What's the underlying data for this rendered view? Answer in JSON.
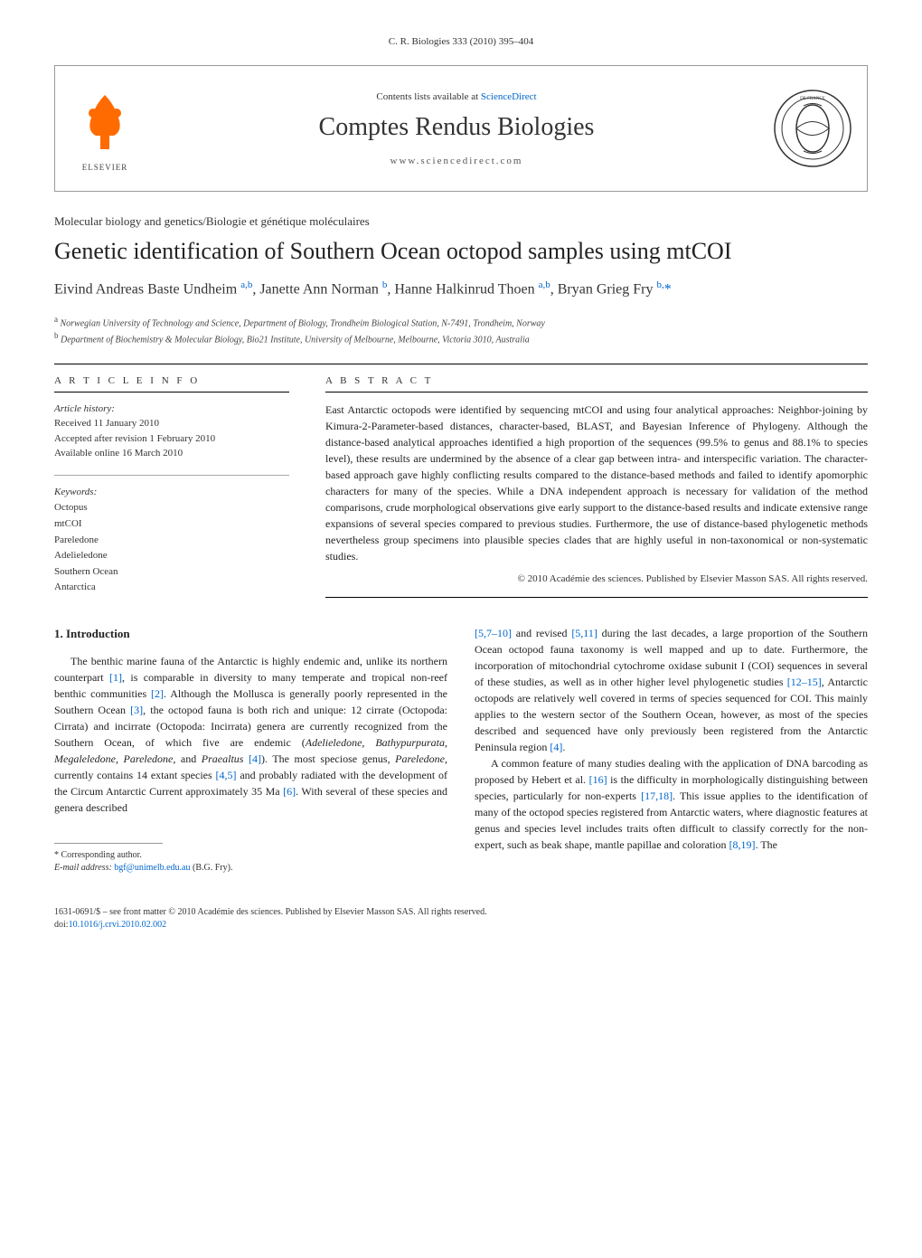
{
  "page_header": "C. R. Biologies 333 (2010) 395–404",
  "banner": {
    "elsevier_text": "ELSEVIER",
    "contents_prefix": "Contents lists available at ",
    "contents_link": "ScienceDirect",
    "journal_title": "Comptes Rendus Biologies",
    "journal_url": "www.sciencedirect.com"
  },
  "section_label": "Molecular biology and genetics/Biologie et génétique moléculaires",
  "article_title": "Genetic identification of Southern Ocean octopod samples using mtCOI",
  "authors_html": "Eivind Andreas Baste Undheim <sup>a,b</sup>, Janette Ann Norman <sup>b</sup>, Hanne Halkinrud Thoen <sup>a,b</sup>, Bryan Grieg Fry <sup>b,</sup><a href=\"#\">*</a>",
  "affiliations": [
    "a Norwegian University of Technology and Science, Department of Biology, Trondheim Biological Station, N-7491, Trondheim, Norway",
    "b Department of Biochemistry & Molecular Biology, Bio21 Institute, University of Melbourne, Melbourne, Victoria 3010, Australia"
  ],
  "info": {
    "heading": "A R T I C L E   I N F O",
    "history_label": "Article history:",
    "history": [
      "Received 11 January 2010",
      "Accepted after revision 1 February 2010",
      "Available online 16 March 2010"
    ],
    "keywords_label": "Keywords:",
    "keywords": [
      "Octopus",
      "mtCOI",
      "Pareledone",
      "Adelieledone",
      "Southern Ocean",
      "Antarctica"
    ]
  },
  "abstract": {
    "heading": "A B S T R A C T",
    "text": "East Antarctic octopods were identified by sequencing mtCOI and using four analytical approaches: Neighbor-joining by Kimura-2-Parameter-based distances, character-based, BLAST, and Bayesian Inference of Phylogeny. Although the distance-based analytical approaches identified a high proportion of the sequences (99.5% to genus and 88.1% to species level), these results are undermined by the absence of a clear gap between intra- and interspecific variation. The character-based approach gave highly conflicting results compared to the distance-based methods and failed to identify apomorphic characters for many of the species. While a DNA independent approach is necessary for validation of the method comparisons, crude morphological observations give early support to the distance-based results and indicate extensive range expansions of several species compared to previous studies. Furthermore, the use of distance-based phylogenetic methods nevertheless group specimens into plausible species clades that are highly useful in non-taxonomical or non-systematic studies.",
    "copyright": "© 2010 Académie des sciences. Published by Elsevier Masson SAS. All rights reserved."
  },
  "body": {
    "section_heading": "1. Introduction",
    "left_col_html": "The benthic marine fauna of the Antarctic is highly endemic and, unlike its northern counterpart <a class=\"ref\" href=\"#\">[1]</a>, is comparable in diversity to many temperate and tropical non-reef benthic communities <a class=\"ref\" href=\"#\">[2]</a>. Although the Mollusca is generally poorly represented in the Southern Ocean <a class=\"ref\" href=\"#\">[3]</a>, the octopod fauna is both rich and unique: 12 cirrate (Octopoda: Cirrata) and incirrate (Octopoda: Incirrata) genera are currently recognized from the Southern Ocean, of which five are endemic (<span class=\"ital\">Adelieledone, Bathypurpurata, Megaleledone, Pareledone</span>, and <span class=\"ital\">Praealtus</span> <a class=\"ref\" href=\"#\">[4]</a>). The most speciose genus, <span class=\"ital\">Pareledone</span>, currently contains 14 extant species <a class=\"ref\" href=\"#\">[4,5]</a> and probably radiated with the development of the Circum Antarctic Current approximately 35 Ma <a class=\"ref\" href=\"#\">[6]</a>. With several of these species and genera described",
    "right_col_p1_html": "<a class=\"ref\" href=\"#\">[5,7–10]</a> and revised <a class=\"ref\" href=\"#\">[5,11]</a> during the last decades, a large proportion of the Southern Ocean octopod fauna taxonomy is well mapped and up to date. Furthermore, the incorporation of mitochondrial cytochrome oxidase subunit I (COI) sequences in several of these studies, as well as in other higher level phylogenetic studies <a class=\"ref\" href=\"#\">[12–15]</a>, Antarctic octopods are relatively well covered in terms of species sequenced for COI. This mainly applies to the western sector of the Southern Ocean, however, as most of the species described and sequenced have only previously been registered from the Antarctic Peninsula region <a class=\"ref\" href=\"#\">[4]</a>.",
    "right_col_p2_html": "A common feature of many studies dealing with the application of DNA barcoding as proposed by Hebert et al. <a class=\"ref\" href=\"#\">[16]</a> is the difficulty in morphologically distinguishing between species, particularly for non-experts <a class=\"ref\" href=\"#\">[17,18]</a>. This issue applies to the identification of many of the octopod species registered from Antarctic waters, where diagnostic features at genus and species level includes traits often difficult to classify correctly for the non-expert, such as beak shape, mantle papillae and coloration <a class=\"ref\" href=\"#\">[8,19]</a>. The"
  },
  "footnote": {
    "corresponding": "* Corresponding author.",
    "email_label": "E-mail address: ",
    "email": "bgf@unimelb.edu.au",
    "email_suffix": " (B.G. Fry)."
  },
  "bottom": {
    "line1": "1631-0691/$ – see front matter © 2010 Académie des sciences. Published by Elsevier Masson SAS. All rights reserved.",
    "doi_label": "doi:",
    "doi": "10.1016/j.crvi.2010.02.002"
  },
  "colors": {
    "link": "#0066cc",
    "text": "#222222",
    "border": "#999999",
    "elsevier_orange": "#ff6b00"
  }
}
